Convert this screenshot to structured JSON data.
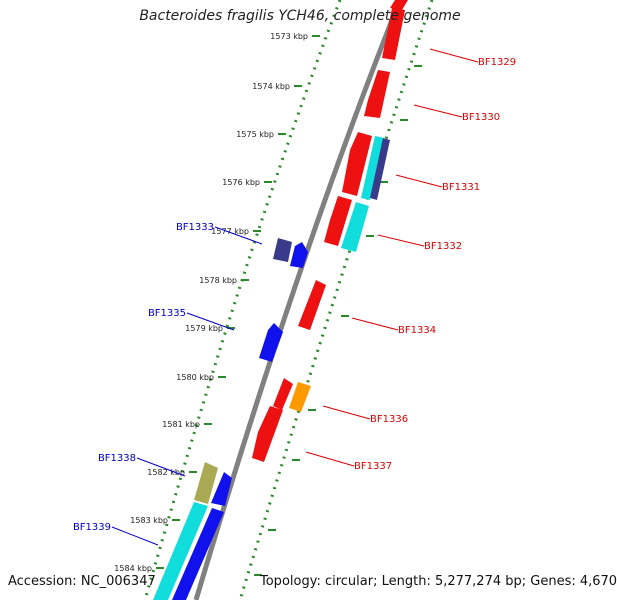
{
  "title": "Bacteroides fragilis YCH46, complete genome",
  "footer": {
    "accession": "Accession: NC_006347",
    "topology": "Topology: circular; Length: 5,277,274 bp; Genes: 4,670"
  },
  "colors": {
    "backbone": "#808080",
    "tick_track": "#2a8a2a",
    "forward_label": "#dd0000",
    "reverse_label": "#0000cc",
    "gene_red": "#ee1111",
    "gene_blue": "#1111ee",
    "gene_cyan": "#11dddd",
    "gene_navy": "#3a3a8a",
    "gene_orange": "#ff9900",
    "gene_khaki": "#aaaa55"
  },
  "ticks": [
    {
      "label": "1573 kbp",
      "kbp": 1573
    },
    {
      "label": "1574 kbp",
      "kbp": 1574
    },
    {
      "label": "1575 kbp",
      "kbp": 1575
    },
    {
      "label": "1576 kbp",
      "kbp": 1576
    },
    {
      "label": "1577 kbp",
      "kbp": 1577
    },
    {
      "label": "1578 kbp",
      "kbp": 1578
    },
    {
      "label": "1579 kbp",
      "kbp": 1579
    },
    {
      "label": "1580 kbp",
      "kbp": 1580
    },
    {
      "label": "1581 kbp",
      "kbp": 1581
    },
    {
      "label": "1582 kbp",
      "kbp": 1582
    },
    {
      "label": "1583 kbp",
      "kbp": 1583
    },
    {
      "label": "1584 kbp",
      "kbp": 1584
    }
  ],
  "gene_labels": [
    {
      "name": "BF1329",
      "strand": "forward"
    },
    {
      "name": "BF1330",
      "strand": "forward"
    },
    {
      "name": "BF1331",
      "strand": "forward"
    },
    {
      "name": "BF1332",
      "strand": "forward"
    },
    {
      "name": "BF1333",
      "strand": "reverse"
    },
    {
      "name": "BF1334",
      "strand": "forward"
    },
    {
      "name": "BF1335",
      "strand": "reverse"
    },
    {
      "name": "BF1336",
      "strand": "forward"
    },
    {
      "name": "BF1337",
      "strand": "forward"
    },
    {
      "name": "BF1338",
      "strand": "reverse"
    },
    {
      "name": "BF1339",
      "strand": "reverse"
    }
  ]
}
